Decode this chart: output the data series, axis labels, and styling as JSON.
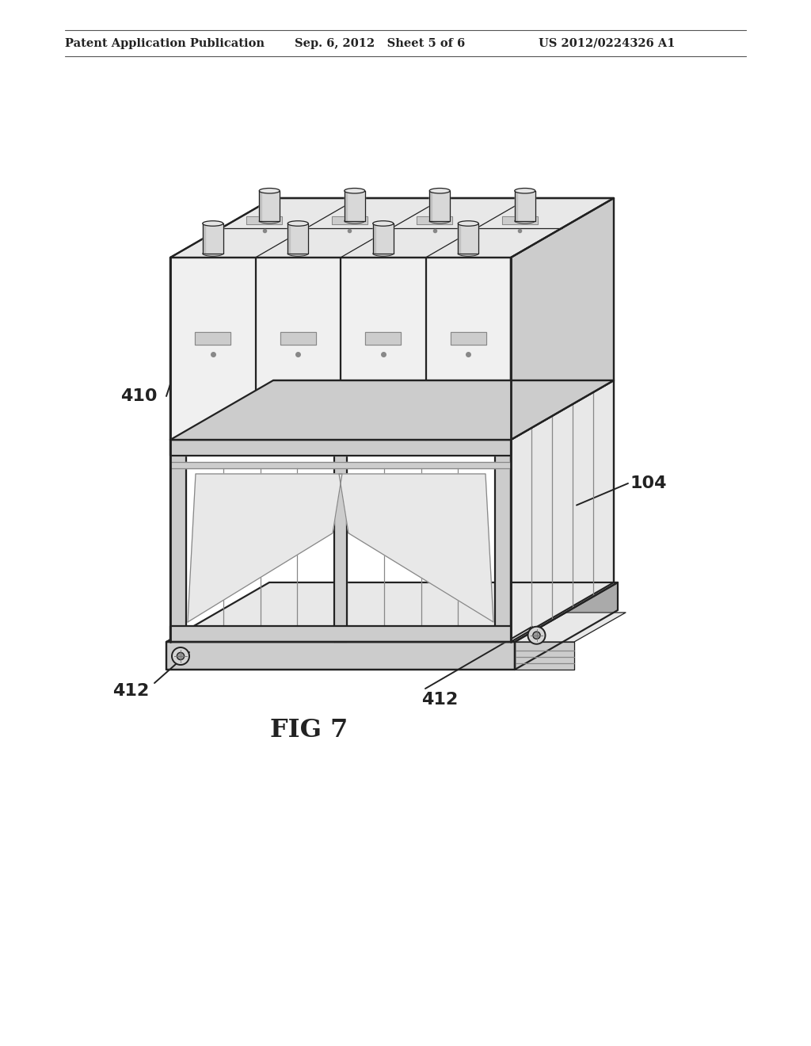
{
  "background_color": "#ffffff",
  "line_color": "#222222",
  "header_left": "Patent Application Publication",
  "header_mid": "Sep. 6, 2012   Sheet 5 of 6",
  "header_right": "US 2012/0224326 A1",
  "fig_label": "FIG 7",
  "ref_104": "104",
  "ref_410": "410",
  "ref_412": "412",
  "c_white": "#f8f8f8",
  "c_light": "#e8e8e8",
  "c_mid": "#cccccc",
  "c_dark": "#aaaaaa",
  "c_darker": "#888888",
  "c_rail": "#d5d5d5"
}
